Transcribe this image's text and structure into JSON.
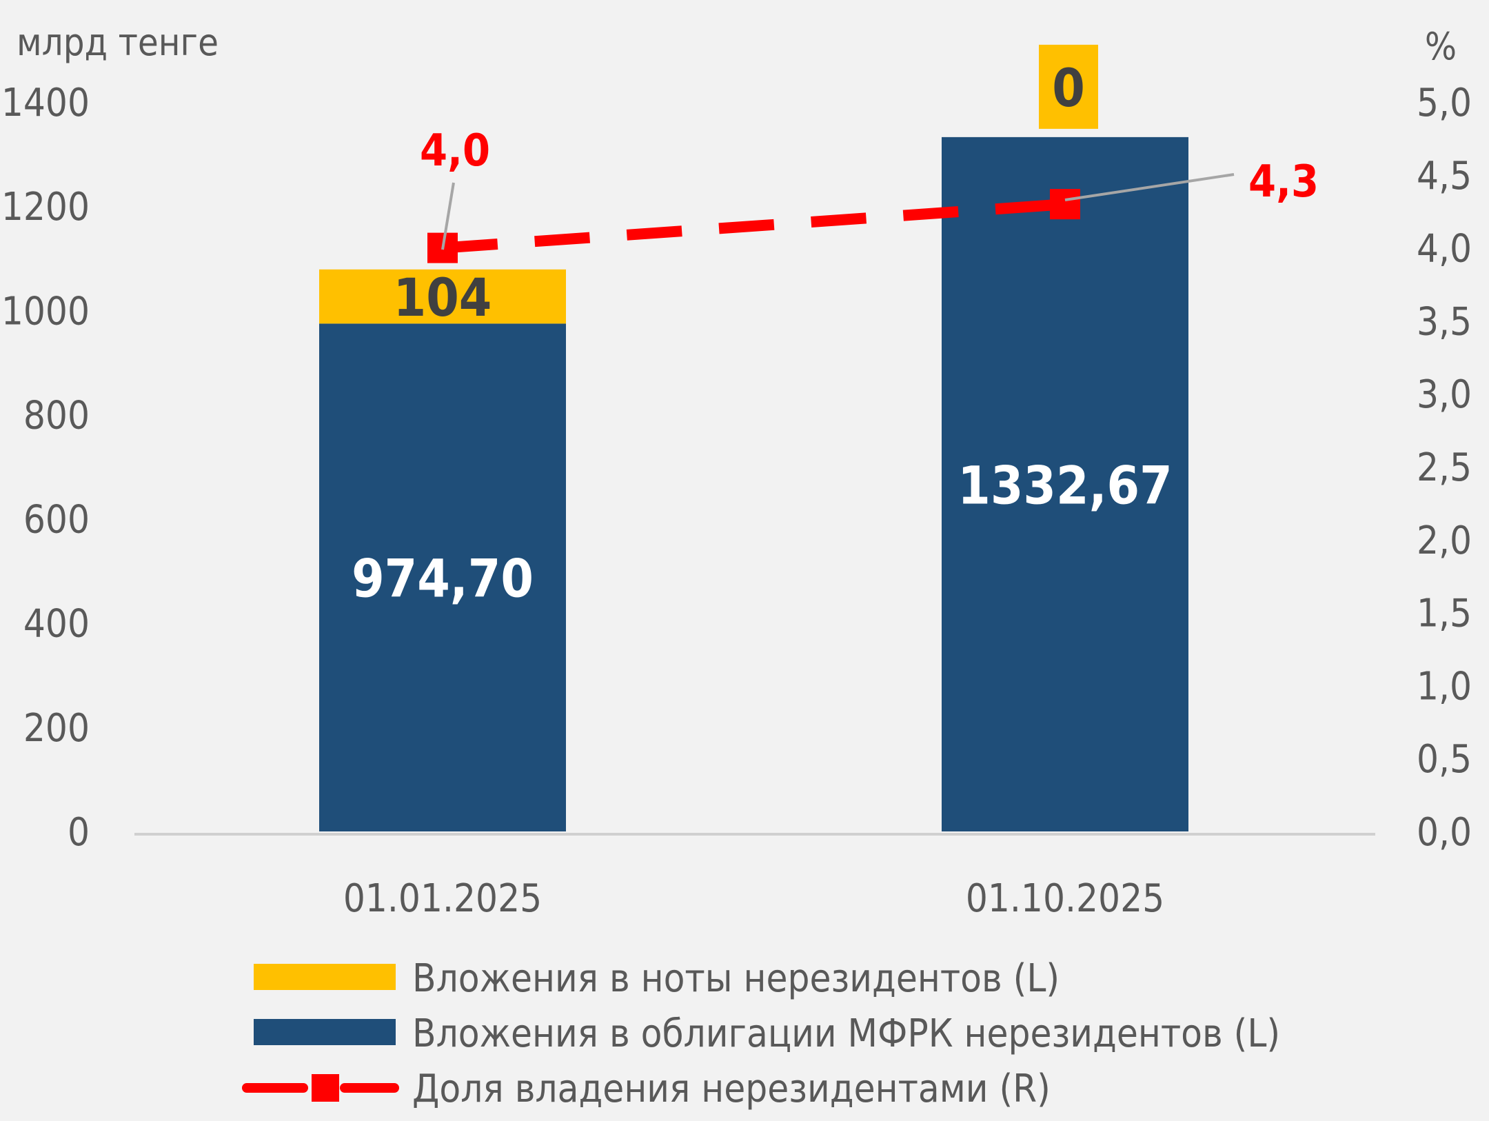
{
  "chart_data": {
    "type": "bar",
    "stacked": true,
    "left_axis_unit": "млрд тенге",
    "right_axis_unit": "%",
    "categories": [
      "01.01.2025",
      "01.10.2025"
    ],
    "series": [
      {
        "name": "Вложения в облигации МФРК нерезидентов (L)",
        "axis": "left",
        "type": "bar",
        "color": "#1f4e79",
        "values": [
          974.7,
          1332.67
        ],
        "labels": [
          "974,70",
          "1332,67"
        ]
      },
      {
        "name": "Вложения в ноты нерезидентов (L)",
        "axis": "left",
        "type": "bar",
        "color": "#ffc000",
        "values": [
          104,
          0
        ],
        "labels": [
          "104",
          "0"
        ]
      },
      {
        "name": "Доля владения нерезидентами (R)",
        "axis": "right",
        "type": "line",
        "style": "dashed",
        "marker": "square",
        "color": "#ff0000",
        "values": [
          4.0,
          4.3
        ],
        "labels": [
          "4,0",
          "4,3"
        ]
      }
    ],
    "left_axis": {
      "min": 0,
      "max": 1400,
      "ticks": [
        "0",
        "200",
        "400",
        "600",
        "800",
        "1000",
        "1200",
        "1400"
      ]
    },
    "right_axis": {
      "min": 0,
      "max": 5,
      "ticks": [
        "0,0",
        "0,5",
        "1,0",
        "1,5",
        "2,0",
        "2,5",
        "3,0",
        "3,5",
        "4,0",
        "4,5",
        "5,0"
      ]
    },
    "legend": {
      "position": "bottom",
      "entries": [
        {
          "label": "Вложения в ноты нерезидентов (L)",
          "color": "#ffc000",
          "symbol": "bar"
        },
        {
          "label": "Вложения в облигации МФРК нерезидентов (L)",
          "color": "#1f4e79",
          "symbol": "bar"
        },
        {
          "label": "Доля владения нерезидентами (R)",
          "color": "#ff0000",
          "symbol": "dashed-line-square"
        }
      ]
    },
    "grid": false
  }
}
